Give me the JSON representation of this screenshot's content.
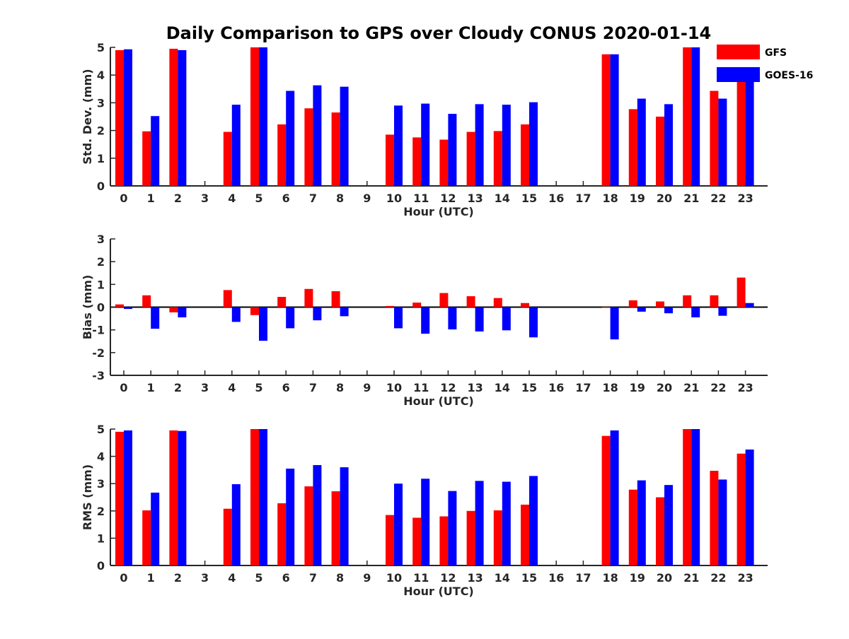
{
  "title": "Daily Comparison to GPS over Cloudy CONUS 2020-01-14",
  "colors": {
    "GFS": "#ff0000",
    "GOES-16": "#0000ff",
    "axis": "#262626"
  },
  "legend": {
    "placement": "top-right",
    "items": [
      "GFS",
      "GOES-16"
    ]
  },
  "chart_data": [
    {
      "type": "bar",
      "ylabel": "Std. Dev. (mm)",
      "xlabel": "Hour (UTC)",
      "ylim": [
        0,
        5
      ],
      "yticks": [
        0,
        1,
        2,
        3,
        4,
        5
      ],
      "categories": [
        "0",
        "1",
        "2",
        "3",
        "4",
        "5",
        "6",
        "7",
        "8",
        "9",
        "10",
        "11",
        "12",
        "13",
        "14",
        "15",
        "16",
        "17",
        "18",
        "19",
        "20",
        "21",
        "22",
        "23"
      ],
      "series": [
        {
          "name": "GFS",
          "values": [
            4.9,
            1.97,
            4.95,
            null,
            1.95,
            5.0,
            2.22,
            2.8,
            2.65,
            null,
            1.85,
            1.75,
            1.67,
            1.95,
            1.98,
            2.22,
            null,
            null,
            4.75,
            2.77,
            2.5,
            5.0,
            3.43,
            3.8
          ]
        },
        {
          "name": "GOES-16",
          "values": [
            4.93,
            2.52,
            4.9,
            null,
            2.93,
            5.0,
            3.43,
            3.63,
            3.58,
            null,
            2.9,
            2.97,
            2.6,
            2.95,
            2.93,
            3.02,
            null,
            null,
            4.75,
            3.15,
            2.95,
            5.0,
            3.15,
            3.8
          ]
        }
      ]
    },
    {
      "type": "bar",
      "ylabel": "Bias (mm)",
      "xlabel": "Hour (UTC)",
      "ylim": [
        -3,
        3
      ],
      "yticks": [
        -3,
        -2,
        -1,
        0,
        1,
        2,
        3
      ],
      "categories": [
        "0",
        "1",
        "2",
        "3",
        "4",
        "5",
        "6",
        "7",
        "8",
        "9",
        "10",
        "11",
        "12",
        "13",
        "14",
        "15",
        "16",
        "17",
        "18",
        "19",
        "20",
        "21",
        "22",
        "23"
      ],
      "series": [
        {
          "name": "GFS",
          "values": [
            0.12,
            0.52,
            -0.23,
            null,
            0.75,
            -0.35,
            0.45,
            0.8,
            0.7,
            null,
            0.05,
            0.2,
            0.62,
            0.48,
            0.4,
            0.18,
            null,
            null,
            -0.03,
            0.3,
            0.25,
            0.52,
            0.52,
            1.3
          ]
        },
        {
          "name": "GOES-16",
          "values": [
            -0.08,
            -0.95,
            -0.45,
            null,
            -0.65,
            -1.48,
            -0.93,
            -0.58,
            -0.4,
            null,
            -0.93,
            -1.17,
            -0.98,
            -1.07,
            -1.02,
            -1.33,
            null,
            null,
            -1.42,
            -0.2,
            -0.27,
            -0.45,
            -0.38,
            0.18
          ]
        }
      ]
    },
    {
      "type": "bar",
      "ylabel": "RMS (mm)",
      "xlabel": "Hour (UTC)",
      "ylim": [
        0,
        5
      ],
      "yticks": [
        0,
        1,
        2,
        3,
        4,
        5
      ],
      "categories": [
        "0",
        "1",
        "2",
        "3",
        "4",
        "5",
        "6",
        "7",
        "8",
        "9",
        "10",
        "11",
        "12",
        "13",
        "14",
        "15",
        "16",
        "17",
        "18",
        "19",
        "20",
        "21",
        "22",
        "23"
      ],
      "series": [
        {
          "name": "GFS",
          "values": [
            4.9,
            2.02,
            4.95,
            null,
            2.08,
            5.0,
            2.28,
            2.9,
            2.72,
            null,
            1.85,
            1.75,
            1.8,
            2.0,
            2.02,
            2.23,
            null,
            null,
            4.75,
            2.78,
            2.5,
            5.0,
            3.47,
            4.1
          ]
        },
        {
          "name": "GOES-16",
          "values": [
            4.95,
            2.67,
            4.93,
            null,
            2.98,
            5.0,
            3.55,
            3.68,
            3.6,
            null,
            3.0,
            3.18,
            2.73,
            3.1,
            3.07,
            3.28,
            null,
            null,
            4.95,
            3.12,
            2.95,
            5.0,
            3.15,
            4.25
          ]
        }
      ]
    }
  ]
}
